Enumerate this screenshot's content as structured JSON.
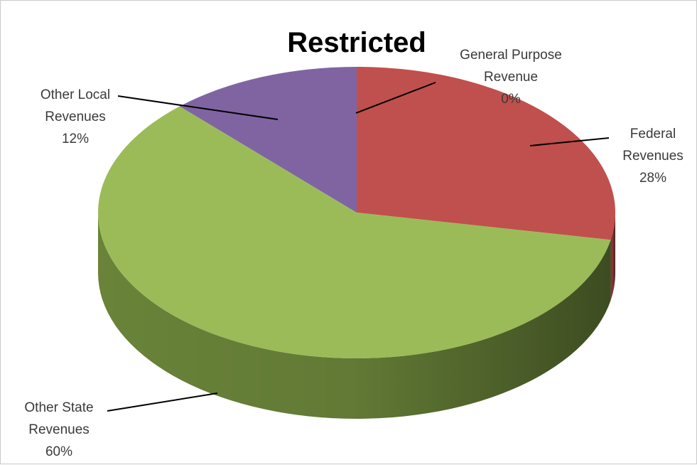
{
  "chart_data": {
    "type": "pie",
    "title": "Restricted",
    "categories": [
      "General Purpose Revenue",
      "Federal Revenues",
      "Other State Revenues",
      "Other Local Revenues"
    ],
    "values": [
      0,
      28,
      60,
      12
    ],
    "unit": "%",
    "colors": [
      "#4a7ebb",
      "#c0504d",
      "#9bbb59",
      "#8064a2"
    ],
    "side_colors": [
      "#3a6496",
      "#8c3a38",
      "#6f8a3c",
      "#5d4879"
    ],
    "style": "3d-pie",
    "legend": "none",
    "labels": [
      {
        "lines": [
          "General Purpose",
          "Revenue",
          "0%"
        ]
      },
      {
        "lines": [
          "Federal",
          "Revenues",
          "28%"
        ]
      },
      {
        "lines": [
          "Other State",
          "Revenues",
          "60%"
        ]
      },
      {
        "lines": [
          "Other Local",
          "Revenues",
          "12%"
        ]
      }
    ]
  }
}
